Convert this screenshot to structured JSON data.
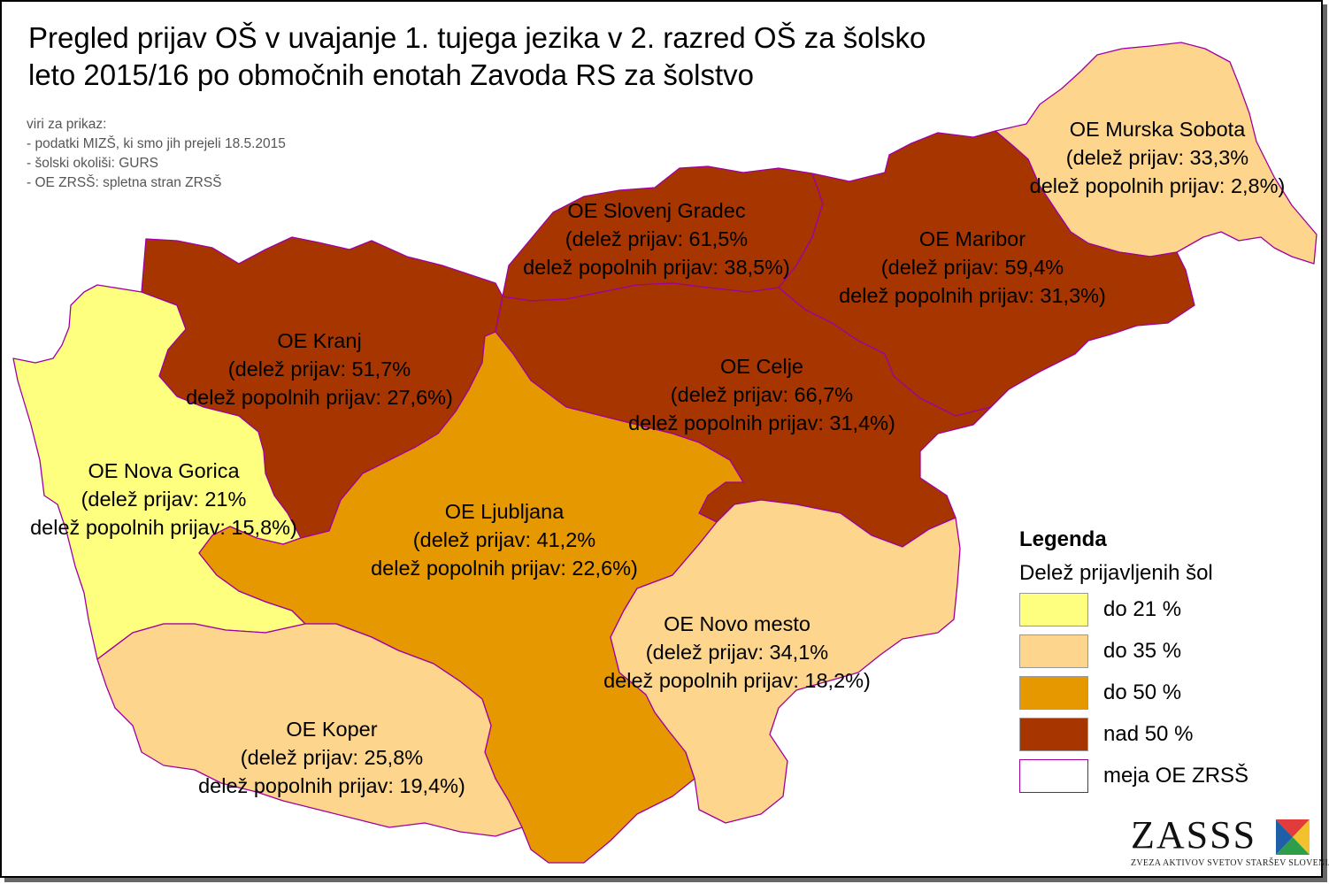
{
  "title": "Pregled prijav OŠ v uvajanje 1. tujega jezika v 2. razred OŠ za šolsko\nleto 2015/16 po območnih enotah Zavoda RS za šolstvo",
  "sources": [
    "viri za prikaz:",
    "- podatki MIZŠ, ki smo jih prejeli 18.5.2015",
    "- šolski okoliši: GURS",
    "- OE ZRSŠ: spletna stran ZRSŠ"
  ],
  "regions": [
    {
      "name": "OE Murska Sobota",
      "share_line": "(delež prijav: 33,3%",
      "full_line": "delež popolnih prijav: 2,8%)",
      "share": 33.3,
      "full_share": 2.8,
      "color": "#FDD58C"
    },
    {
      "name": "OE Slovenj Gradec",
      "share_line": "(delež prijav: 61,5%",
      "full_line": "delež popolnih prijav: 38,5%)",
      "share": 61.5,
      "full_share": 38.5,
      "color": "#A63500"
    },
    {
      "name": "OE Maribor",
      "share_line": "(delež prijav: 59,4%",
      "full_line": "delež popolnih prijav: 31,3%)",
      "share": 59.4,
      "full_share": 31.3,
      "color": "#A63500"
    },
    {
      "name": "OE Kranj",
      "share_line": "(delež prijav: 51,7%",
      "full_line": "delež popolnih prijav: 27,6%)",
      "share": 51.7,
      "full_share": 27.6,
      "color": "#A63500"
    },
    {
      "name": "OE Celje",
      "share_line": "(delež prijav: 66,7%",
      "full_line": "delež popolnih prijav: 31,4%)",
      "share": 66.7,
      "full_share": 31.4,
      "color": "#A63500"
    },
    {
      "name": "OE Nova Gorica",
      "share_line": "(delež prijav: 21%",
      "full_line": "delež popolnih prijav: 15,8%)",
      "share": 21,
      "full_share": 15.8,
      "color": "#FFFF7F"
    },
    {
      "name": "OE Ljubljana",
      "share_line": "(delež prijav: 41,2%",
      "full_line": "delež popolnih prijav: 22,6%)",
      "share": 41.2,
      "full_share": 22.6,
      "color": "#E69800"
    },
    {
      "name": "OE Novo mesto",
      "share_line": "(delež prijav: 34,1%",
      "full_line": "delež popolnih prijav: 18,2%)",
      "share": 34.1,
      "full_share": 18.2,
      "color": "#FDD58C"
    },
    {
      "name": "OE Koper",
      "share_line": "(delež prijav: 25,8%",
      "full_line": "delež popolnih prijav: 19,4%)",
      "share": 25.8,
      "full_share": 19.4,
      "color": "#FDD58C"
    }
  ],
  "legend": {
    "title": "Legenda",
    "subtitle": "Delež prijavljenih šol",
    "items": [
      {
        "label": "do 21 %",
        "color": "#FFFF7F"
      },
      {
        "label": "do 35 %",
        "color": "#FDD58C"
      },
      {
        "label": "do 50 %",
        "color": "#E69800"
      },
      {
        "label": "nad 50 %",
        "color": "#A63500"
      },
      {
        "label": "meja OE ZRSŠ",
        "color": "#FFFFFF",
        "border": "#A000A0"
      }
    ]
  },
  "logo": {
    "text": "ZASSS",
    "subtitle": "ZVEZA AKTIVOV SVETOV STARŠEV SLOVENIJE"
  },
  "colors": {
    "boundary": "#A000A0",
    "yellow": "#FFFF7F",
    "light_orange": "#FDD58C",
    "orange": "#E69800",
    "dark_brown": "#A63500"
  }
}
